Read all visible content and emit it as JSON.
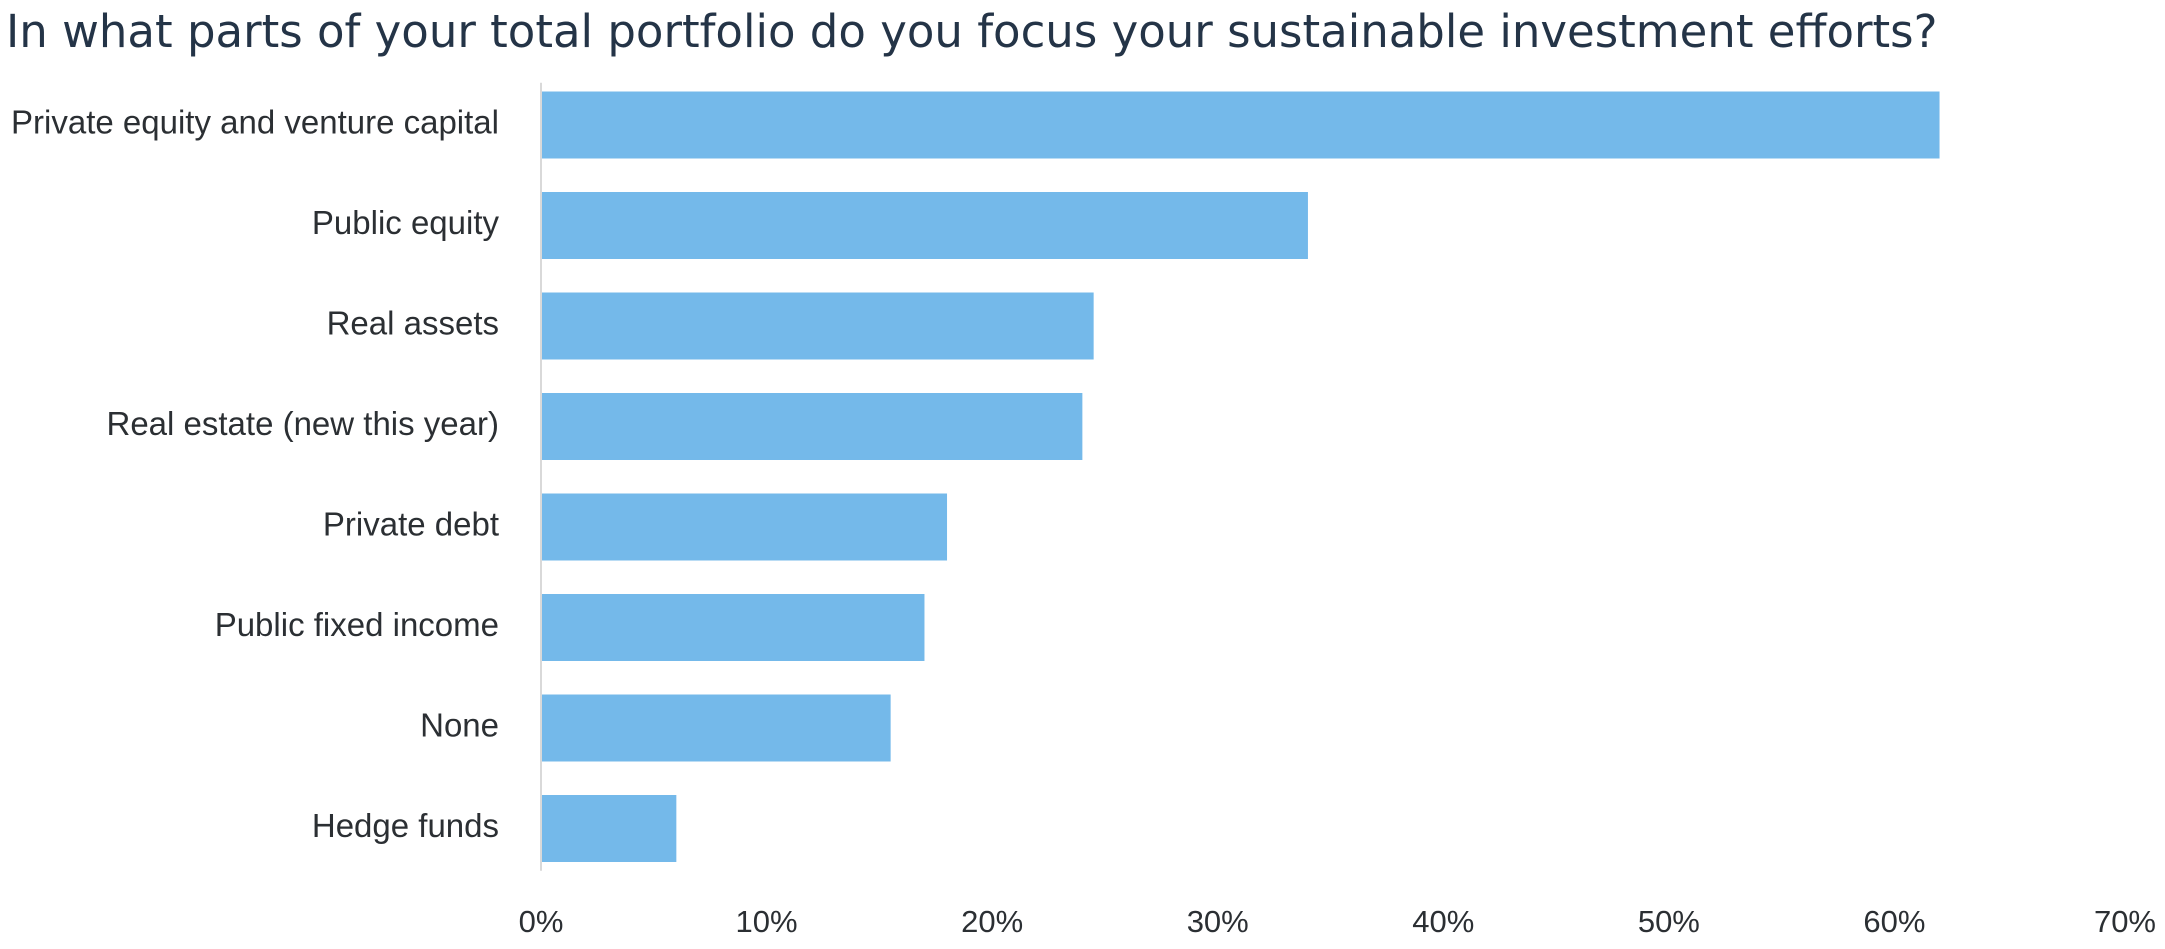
{
  "chart_data": {
    "type": "bar",
    "orientation": "horizontal",
    "title": "In what parts of your total portfolio do you focus your sustainable investment efforts?",
    "xlabel": "",
    "ylabel": "",
    "categories": [
      "Private equity and venture capital",
      "Public equity",
      "Real assets",
      "Real estate (new this year)",
      "Private debt",
      "Public fixed income",
      "None",
      "Hedge funds"
    ],
    "values": [
      62,
      34,
      24.5,
      24,
      18,
      17,
      15.5,
      6
    ],
    "unit": "%",
    "xlim": [
      0,
      70
    ],
    "xticks": [
      0,
      10,
      20,
      30,
      40,
      50,
      60,
      70
    ],
    "xtick_labels": [
      "0%",
      "10%",
      "20%",
      "30%",
      "40%",
      "50%",
      "60%",
      "70%"
    ],
    "grid": false,
    "legend": "none",
    "bar_color": "#74b9ea",
    "axis_color": "#d9d9d9"
  }
}
